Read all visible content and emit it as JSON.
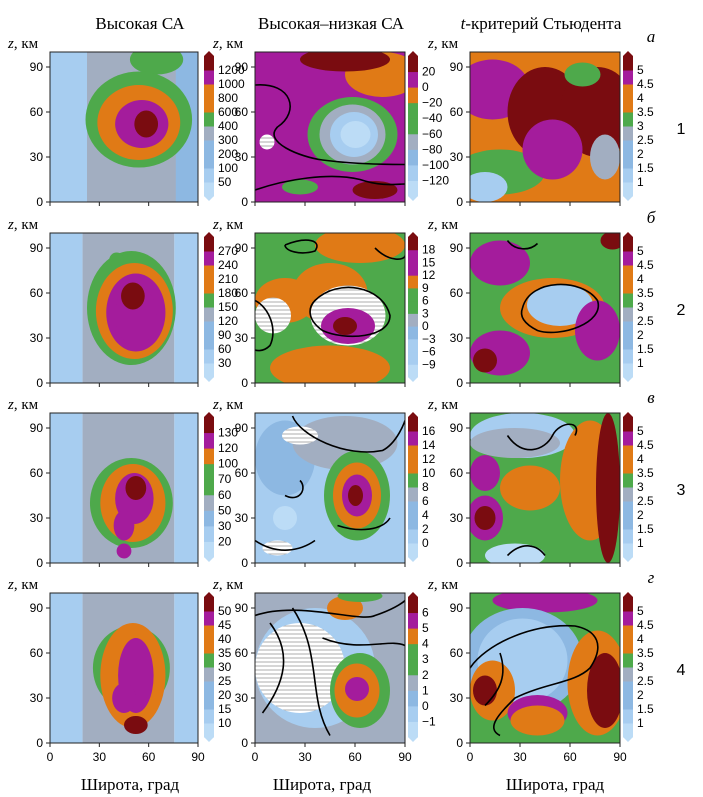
{
  "figure": {
    "column_titles": [
      "Высокая СА",
      "Высокая–низкая СА",
      "t-критерий Стьюдента"
    ],
    "t_prefix": "t",
    "t_title_rest": "-критерий Стьюдента",
    "y_axis_label_var": "z",
    "y_axis_label_unit": ", км",
    "x_axis_label": "Широта, град",
    "panel_letters": [
      "а",
      "б",
      "в",
      "г"
    ],
    "row_numbers": [
      "1",
      "2",
      "3",
      "4"
    ],
    "x_ticks": [
      "0",
      "30",
      "60",
      "90"
    ],
    "y_ticks": [
      "0",
      "30",
      "60",
      "90"
    ]
  },
  "colormap": [
    "#bcdcf6",
    "#a7cdf0",
    "#8db8e2",
    "#a2aec1",
    "#4ea94b",
    "#e07a16",
    "#a41c9c",
    "#7a0c10"
  ],
  "chart_data": [
    {
      "type": "heatmap",
      "row": 1,
      "column": 1,
      "xlabel": "Широта, град",
      "ylabel": "z, км",
      "xlim": [
        0,
        90
      ],
      "ylim": [
        0,
        100
      ],
      "colorbar": [
        "50",
        "100",
        "200",
        "300",
        "400",
        "600",
        "800",
        "1000",
        "1200"
      ],
      "description_note": "maximum ~1200 near 60° lat, z≈55 km"
    },
    {
      "type": "heatmap",
      "row": 1,
      "column": 2,
      "xlim": [
        0,
        90
      ],
      "ylim": [
        0,
        100
      ],
      "colorbar": [
        "−120",
        "−100",
        "−80",
        "−60",
        "−40",
        "−20",
        "0",
        "20"
      ]
    },
    {
      "type": "heatmap",
      "row": 1,
      "column": 3,
      "xlim": [
        0,
        90
      ],
      "ylim": [
        0,
        100
      ],
      "colorbar": [
        "1",
        "1.5",
        "2",
        "2.5",
        "3",
        "3.5",
        "4",
        "4.5",
        "5"
      ]
    },
    {
      "type": "heatmap",
      "row": 2,
      "column": 1,
      "xlim": [
        0,
        90
      ],
      "ylim": [
        0,
        100
      ],
      "colorbar": [
        "30",
        "60",
        "90",
        "120",
        "150",
        "180",
        "210",
        "240",
        "270"
      ]
    },
    {
      "type": "heatmap",
      "row": 2,
      "column": 2,
      "xlim": [
        0,
        90
      ],
      "ylim": [
        0,
        100
      ],
      "colorbar": [
        "−9",
        "−6",
        "−3",
        "0",
        "3",
        "6",
        "9",
        "12",
        "15",
        "18"
      ]
    },
    {
      "type": "heatmap",
      "row": 2,
      "column": 3,
      "xlim": [
        0,
        90
      ],
      "ylim": [
        0,
        100
      ],
      "colorbar": [
        "1",
        "1.5",
        "2",
        "2.5",
        "3",
        "3.5",
        "4",
        "4.5",
        "5"
      ]
    },
    {
      "type": "heatmap",
      "row": 3,
      "column": 1,
      "xlim": [
        0,
        90
      ],
      "ylim": [
        0,
        100
      ],
      "colorbar": [
        "20",
        "30",
        "50",
        "60",
        "70",
        "100",
        "120",
        "130"
      ]
    },
    {
      "type": "heatmap",
      "row": 3,
      "column": 2,
      "xlim": [
        0,
        90
      ],
      "ylim": [
        0,
        100
      ],
      "colorbar": [
        "0",
        "2",
        "4",
        "6",
        "8",
        "10",
        "12",
        "14",
        "16"
      ]
    },
    {
      "type": "heatmap",
      "row": 3,
      "column": 3,
      "xlim": [
        0,
        90
      ],
      "ylim": [
        0,
        100
      ],
      "colorbar": [
        "1",
        "1.5",
        "2",
        "2.5",
        "3",
        "3.5",
        "4",
        "4.5",
        "5"
      ]
    },
    {
      "type": "heatmap",
      "row": 4,
      "column": 1,
      "xlim": [
        0,
        90
      ],
      "ylim": [
        0,
        100
      ],
      "colorbar": [
        "10",
        "15",
        "20",
        "25",
        "30",
        "35",
        "40",
        "45",
        "50"
      ]
    },
    {
      "type": "heatmap",
      "row": 4,
      "column": 2,
      "xlim": [
        0,
        90
      ],
      "ylim": [
        0,
        100
      ],
      "colorbar": [
        "−1",
        "0",
        "1",
        "2",
        "3",
        "4",
        "5",
        "6"
      ]
    },
    {
      "type": "heatmap",
      "row": 4,
      "column": 3,
      "xlim": [
        0,
        90
      ],
      "ylim": [
        0,
        100
      ],
      "colorbar": [
        "1",
        "1.5",
        "2",
        "2.5",
        "3",
        "3.5",
        "4",
        "4.5",
        "5"
      ]
    }
  ]
}
